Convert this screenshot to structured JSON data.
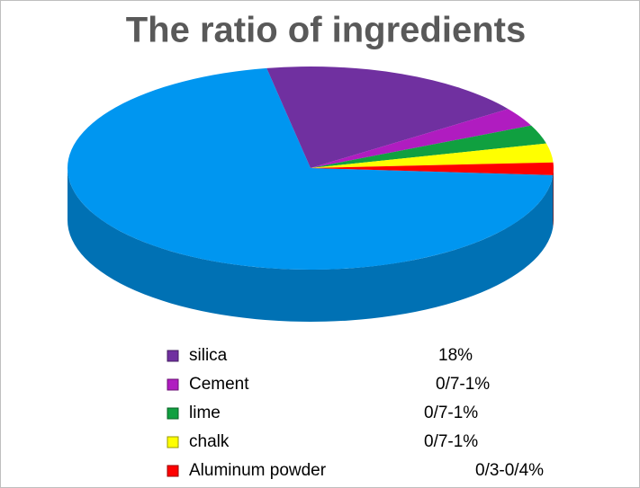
{
  "chart_data": {
    "type": "pie3d",
    "title": "The ratio of ingredients",
    "categories": [
      null,
      "silica",
      "Cement",
      "lime",
      "chalk",
      "Aluminum powder"
    ],
    "values": [
      71,
      18,
      3,
      3,
      3,
      2
    ],
    "colors": [
      "#0096f0",
      "#7030a0",
      "#b01cc0",
      "#10a040",
      "#ffff00",
      "#ff0000"
    ],
    "legend_values": [
      null,
      "18%",
      "0/7-1%",
      "0/7-1%",
      "0/7-1%",
      "0/3-0/4%"
    ]
  }
}
